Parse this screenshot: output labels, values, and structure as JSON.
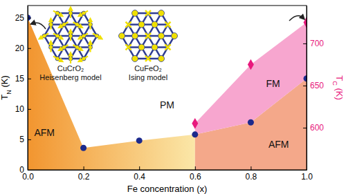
{
  "chart_data": {
    "type": "scatter",
    "xlabel": "Fe concentration (x)",
    "ylabel": "TN (K)",
    "y2label": "TC (K)",
    "xlim": [
      0,
      1
    ],
    "xticks": [
      {
        "value": 0,
        "label": "0.0"
      },
      {
        "value": 0.2,
        "label": "0.2"
      },
      {
        "value": 0.4,
        "label": "0.4"
      },
      {
        "value": 0.6,
        "label": "0.6"
      },
      {
        "value": 0.8,
        "label": "0.8"
      },
      {
        "value": 1,
        "label": "1.0"
      }
    ],
    "ylim": [
      0,
      27
    ],
    "yticks": [
      0,
      5,
      10,
      15,
      20,
      25
    ],
    "y2lim": [
      550,
      745
    ],
    "y2ticks": [
      600,
      650,
      700
    ],
    "series": [
      {
        "x": [
          0,
          0.2,
          0.4,
          0.6,
          0.8,
          1.0
        ],
        "values": [
          25,
          3.6,
          4.8,
          5.8,
          7.8,
          15
        ],
        "color": "#1c2a8c",
        "marker": "circle"
      },
      {
        "x": [
          0.6,
          0.8,
          1.0
        ],
        "values": [
          605,
          675,
          725
        ],
        "color": "#e8197d",
        "marker": "diamond",
        "axis": "y2"
      }
    ],
    "annotations": [
      {
        "text": "AFM",
        "x": 0.06,
        "y": 6
      },
      {
        "text": "PM",
        "x": 0.5,
        "y": 10.5
      },
      {
        "text": "FM",
        "x": 0.88,
        "y": 14
      },
      {
        "text": "AFM",
        "x": 0.9,
        "y": 4
      }
    ],
    "insets": [
      {
        "title": "CuCrO₂",
        "subtitle": "Heisenberg model"
      },
      {
        "title": "CuFeO₂",
        "subtitle": "Ising model"
      }
    ]
  }
}
